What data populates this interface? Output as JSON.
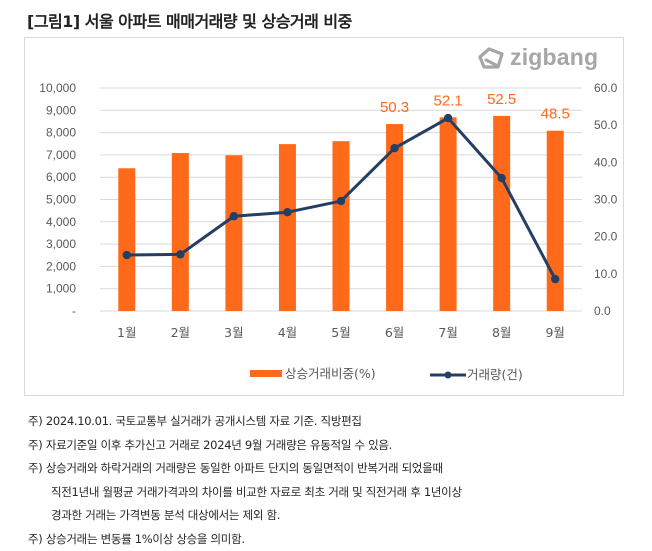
{
  "title": "[그림1] 서울 아파트 매매거래량 및 상승거래 비중",
  "logo": {
    "icon": "zigbang-house-icon",
    "text": "zigbang"
  },
  "colors": {
    "bar": "#ff6a1a",
    "line": "#243f63",
    "label": "#ff6a1a",
    "grid": "#d9d9d9",
    "axis_text": "#595959"
  },
  "chart_data": {
    "type": "bar+line",
    "categories": [
      "1월",
      "2월",
      "3월",
      "4월",
      "5월",
      "6월",
      "7월",
      "8월",
      "9월"
    ],
    "series": [
      {
        "name": "상승거래비중(%)",
        "type": "bar",
        "axis": "right",
        "values": [
          38.4,
          42.5,
          41.9,
          44.9,
          45.7,
          50.3,
          52.1,
          52.5,
          48.5
        ],
        "data_labels": [
          null,
          null,
          null,
          null,
          null,
          "50.3",
          "52.1",
          "52.5",
          "48.5"
        ]
      },
      {
        "name": "거래량(건)",
        "type": "line",
        "axis": "left",
        "values": [
          2510,
          2540,
          4250,
          4430,
          4930,
          7300,
          8650,
          5960,
          1430
        ]
      }
    ],
    "left_axis": {
      "range": [
        0,
        10000
      ],
      "ticks": [
        "-",
        "1,000",
        "2,000",
        "3,000",
        "4,000",
        "5,000",
        "6,000",
        "7,000",
        "8,000",
        "9,000",
        "10,000"
      ]
    },
    "right_axis": {
      "range": [
        0,
        60
      ],
      "ticks": [
        "0.0",
        "10.0",
        "20.0",
        "30.0",
        "40.0",
        "50.0",
        "60.0"
      ]
    },
    "grid": true,
    "legend": {
      "placement": "bottom-right",
      "entries": [
        "상승거래비중(%)",
        "거래량(건)"
      ]
    }
  },
  "notes": [
    {
      "text": "주) 2024.10.01. 국토교통부 실거래가 공개시스템 자료 기준. 직방편집",
      "indent": false
    },
    {
      "text": "주) 자료기준일 이후 추가신고 거래로 2024년 9월 거래량은 유동적일 수 있음.",
      "indent": false
    },
    {
      "text": "주) 상승거래와 하락거래의 거래량은 동일한 아파트 단지의 동일면적이 반복거래 되었을때",
      "indent": false
    },
    {
      "text": "직전1년내 월평균 거래가격과의 차이를 비교한 자료로 최초 거래 및 직전거래 후 1년이상",
      "indent": true
    },
    {
      "text": "경과한 거래는 가격변동 분석 대상에서는 제외 함.",
      "indent": true
    },
    {
      "text": "주) 상승거래는 변동률 1%이상 상승을 의미함.",
      "indent": false
    }
  ]
}
